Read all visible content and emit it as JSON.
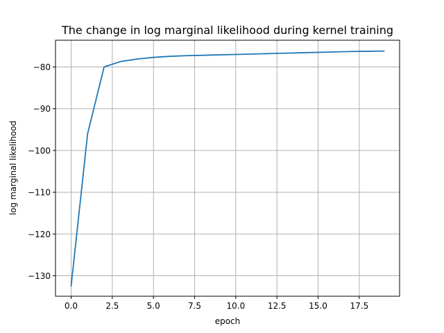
{
  "chart_data": {
    "type": "line",
    "title": "The change in log marginal likelihood during kernel training",
    "xlabel": "epoch",
    "ylabel": "log marginal likelihood",
    "xlim": [
      -0.95,
      19.95
    ],
    "ylim": [
      -134.9,
      -73.6
    ],
    "xticks": [
      0.0,
      2.5,
      5.0,
      7.5,
      10.0,
      12.5,
      15.0,
      17.5
    ],
    "xtick_labels": [
      "0.0",
      "2.5",
      "5.0",
      "7.5",
      "10.0",
      "12.5",
      "15.0",
      "17.5"
    ],
    "yticks": [
      -130,
      -120,
      -110,
      -100,
      -90,
      -80
    ],
    "ytick_labels": [
      "−130",
      "−120",
      "−110",
      "−100",
      "−90",
      "−80"
    ],
    "grid": true,
    "legend": "none",
    "series": [
      {
        "color": "#1f77b4",
        "x": [
          0,
          1,
          2,
          3,
          4,
          5,
          6,
          7,
          8,
          9,
          10,
          11,
          12,
          13,
          14,
          15,
          16,
          17,
          18,
          19
        ],
        "y": [
          -132.4,
          -96.0,
          -80.0,
          -78.7,
          -78.1,
          -77.7,
          -77.45,
          -77.3,
          -77.2,
          -77.1,
          -77.0,
          -76.9,
          -76.8,
          -76.7,
          -76.6,
          -76.5,
          -76.4,
          -76.3,
          -76.25,
          -76.2
        ]
      }
    ]
  }
}
